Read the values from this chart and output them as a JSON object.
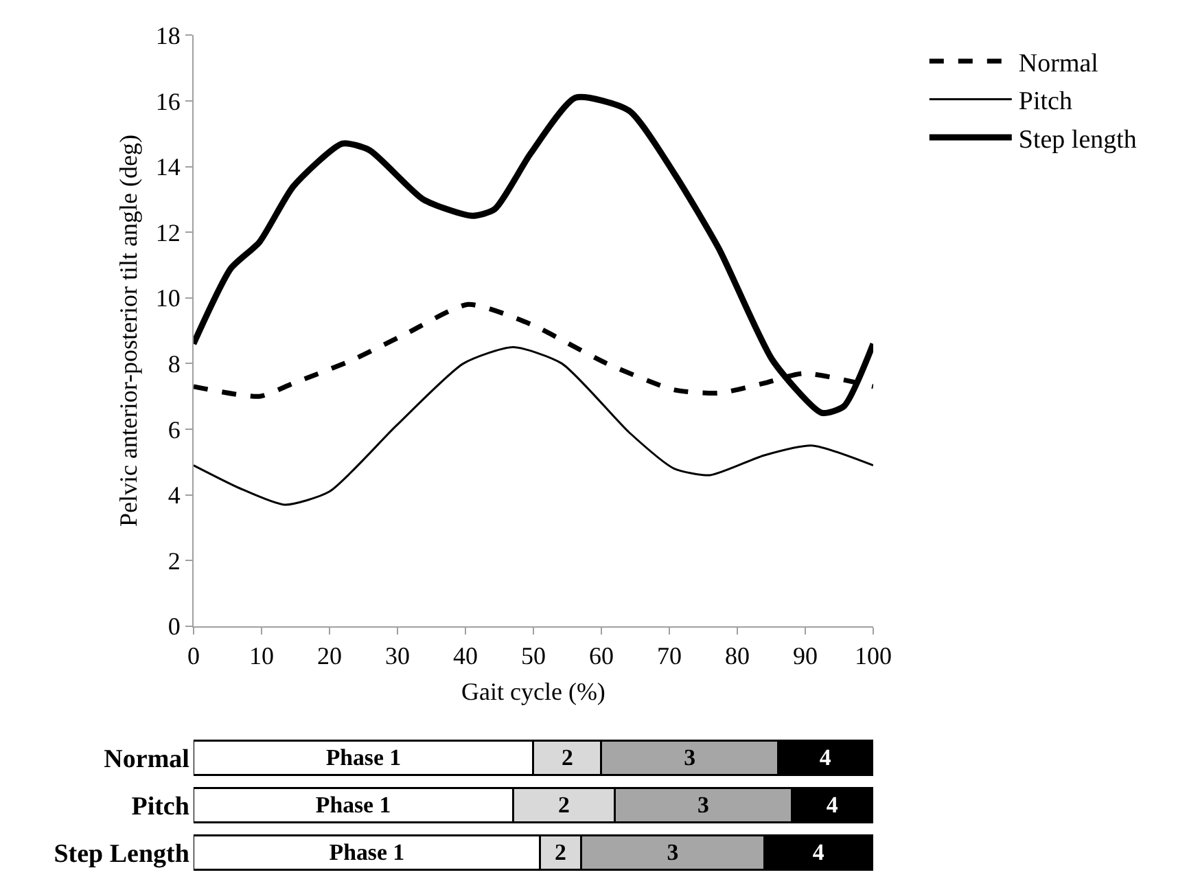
{
  "chart_data": [
    {
      "type": "line",
      "xlabel": "Gait cycle (%)",
      "ylabel": "Pelvic anterior-posterior tilt angle (deg)",
      "xlim": [
        0,
        100
      ],
      "ylim": [
        0,
        18
      ],
      "xticks": [
        0,
        10,
        20,
        30,
        40,
        50,
        60,
        70,
        80,
        90,
        100
      ],
      "yticks": [
        0,
        2,
        4,
        6,
        8,
        10,
        12,
        14,
        16,
        18
      ],
      "legend": "top right",
      "marker": "none",
      "series": [
        {
          "name": "Normal",
          "color": "#000000",
          "line_style": "dashed",
          "x": [
            0,
            9.7,
            14.7,
            23.3,
            31.2,
            40.4,
            49.6,
            60.8,
            70.7,
            77.3,
            83.9,
            89.8,
            100
          ],
          "values": [
            7.3,
            7.0,
            7.4,
            8.1,
            8.9,
            9.8,
            9.2,
            8.0,
            7.2,
            7.1,
            7.4,
            7.7,
            7.3
          ]
        },
        {
          "name": "Pitch",
          "color": "#000000",
          "line_style": "solid",
          "x": [
            0,
            6.8,
            13.4,
            20,
            29.8,
            39.7,
            47,
            54.2,
            64.1,
            70.7,
            76,
            83.9,
            91.1,
            100
          ],
          "values": [
            4.9,
            4.2,
            3.7,
            4.1,
            6.1,
            8.0,
            8.5,
            8.0,
            5.9,
            4.8,
            4.6,
            5.2,
            5.5,
            4.9
          ]
        },
        {
          "name": "Step length",
          "color": "#000000",
          "line_style": "solid",
          "x": [
            0,
            5.5,
            9.7,
            14.7,
            21.9,
            25.9,
            33.8,
            41,
            44.3,
            49.6,
            56.2,
            64.1,
            70.7,
            77.3,
            85.2,
            92.4,
            95.7,
            100
          ],
          "values": [
            8.6,
            10.9,
            11.7,
            13.4,
            14.7,
            14.5,
            13.0,
            12.5,
            12.7,
            14.4,
            16.1,
            15.7,
            13.8,
            11.5,
            8.1,
            6.5,
            6.7,
            8.6
          ]
        }
      ]
    },
    {
      "type": "bar",
      "orientation": "horizontal",
      "stacked": true,
      "categories": [
        "Normal",
        "Pitch",
        "Step Length"
      ],
      "xlim": [
        0,
        100
      ],
      "tick_labels": "y",
      "legend": false,
      "series": [
        {
          "name": "Phase 1",
          "color": "#ffffff",
          "values": [
            50,
            47,
            51
          ]
        },
        {
          "name": "2",
          "color": "#d9d9d9",
          "values": [
            10,
            15,
            6
          ]
        },
        {
          "name": "3",
          "color": "#a6a6a6",
          "values": [
            26,
            26,
            27
          ]
        },
        {
          "name": "4",
          "color": "#000000",
          "values": [
            14,
            12,
            16
          ]
        }
      ]
    }
  ]
}
